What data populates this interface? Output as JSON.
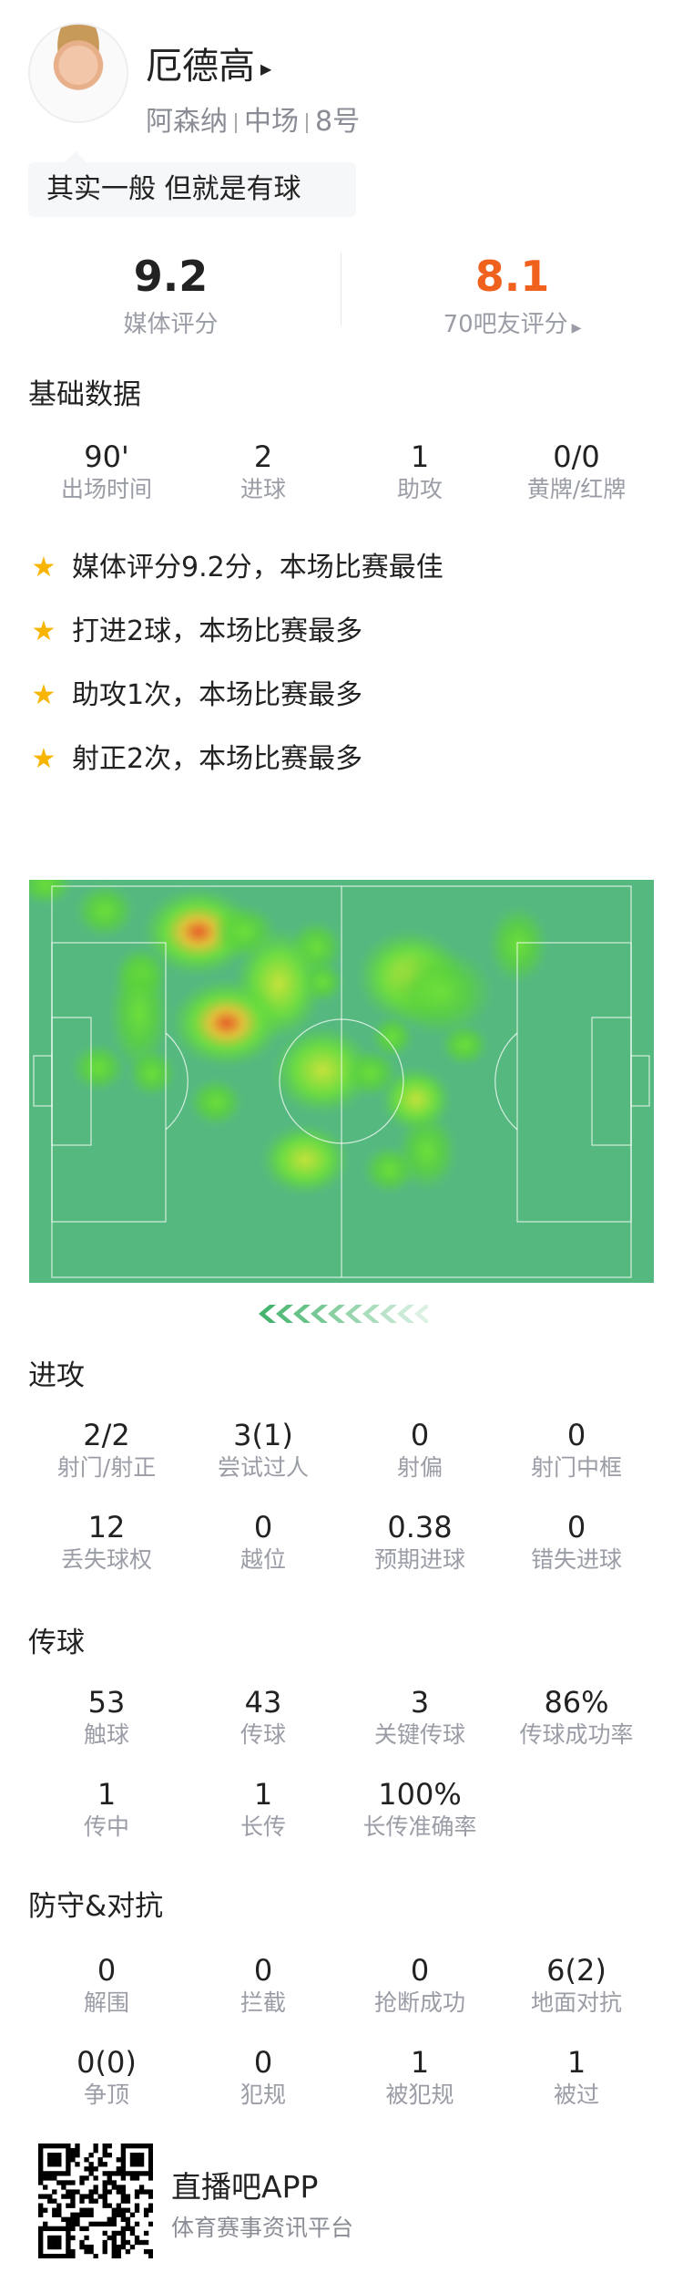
{
  "player": {
    "name": "厄德高",
    "team": "阿森纳",
    "position": "中场",
    "number": "8号",
    "comment": "其实一般 但就是有球"
  },
  "ratings": {
    "media": {
      "value": "9.2",
      "label": "媒体评分"
    },
    "fans": {
      "value": "8.1",
      "label": "70吧友评分",
      "color": "#f0611e"
    }
  },
  "basic": {
    "title": "基础数据",
    "stats": [
      {
        "v": "90'",
        "l": "出场时间"
      },
      {
        "v": "2",
        "l": "进球"
      },
      {
        "v": "1",
        "l": "助攻"
      },
      {
        "v": "0/0",
        "l": "黄牌/红牌"
      }
    ]
  },
  "highlights": [
    "媒体评分9.2分，本场比赛最佳",
    "打进2球，本场比赛最多",
    "助攻1次，本场比赛最多",
    "射正2次，本场比赛最多"
  ],
  "heatmap": {
    "pitch_color": "#55b97f",
    "attack_direction": "left"
  },
  "attack": {
    "title": "进攻",
    "stats": [
      {
        "v": "2/2",
        "l": "射门/射正"
      },
      {
        "v": "3(1)",
        "l": "尝试过人"
      },
      {
        "v": "0",
        "l": "射偏"
      },
      {
        "v": "0",
        "l": "射门中框"
      },
      {
        "v": "12",
        "l": "丢失球权"
      },
      {
        "v": "0",
        "l": "越位"
      },
      {
        "v": "0.38",
        "l": "预期进球"
      },
      {
        "v": "0",
        "l": "错失进球"
      }
    ]
  },
  "passing": {
    "title": "传球",
    "stats": [
      {
        "v": "53",
        "l": "触球"
      },
      {
        "v": "43",
        "l": "传球"
      },
      {
        "v": "3",
        "l": "关键传球"
      },
      {
        "v": "86%",
        "l": "传球成功率"
      },
      {
        "v": "1",
        "l": "传中"
      },
      {
        "v": "1",
        "l": "长传"
      },
      {
        "v": "100%",
        "l": "长传准确率"
      }
    ]
  },
  "defense": {
    "title": "防守&对抗",
    "stats": [
      {
        "v": "0",
        "l": "解围"
      },
      {
        "v": "0",
        "l": "拦截"
      },
      {
        "v": "0",
        "l": "抢断成功"
      },
      {
        "v": "6(2)",
        "l": "地面对抗"
      },
      {
        "v": "0(0)",
        "l": "争顶"
      },
      {
        "v": "0",
        "l": "犯规"
      },
      {
        "v": "1",
        "l": "被犯规"
      },
      {
        "v": "1",
        "l": "被过"
      }
    ]
  },
  "footer": {
    "app": "直播吧APP",
    "tagline": "体育赛事资讯平台"
  }
}
